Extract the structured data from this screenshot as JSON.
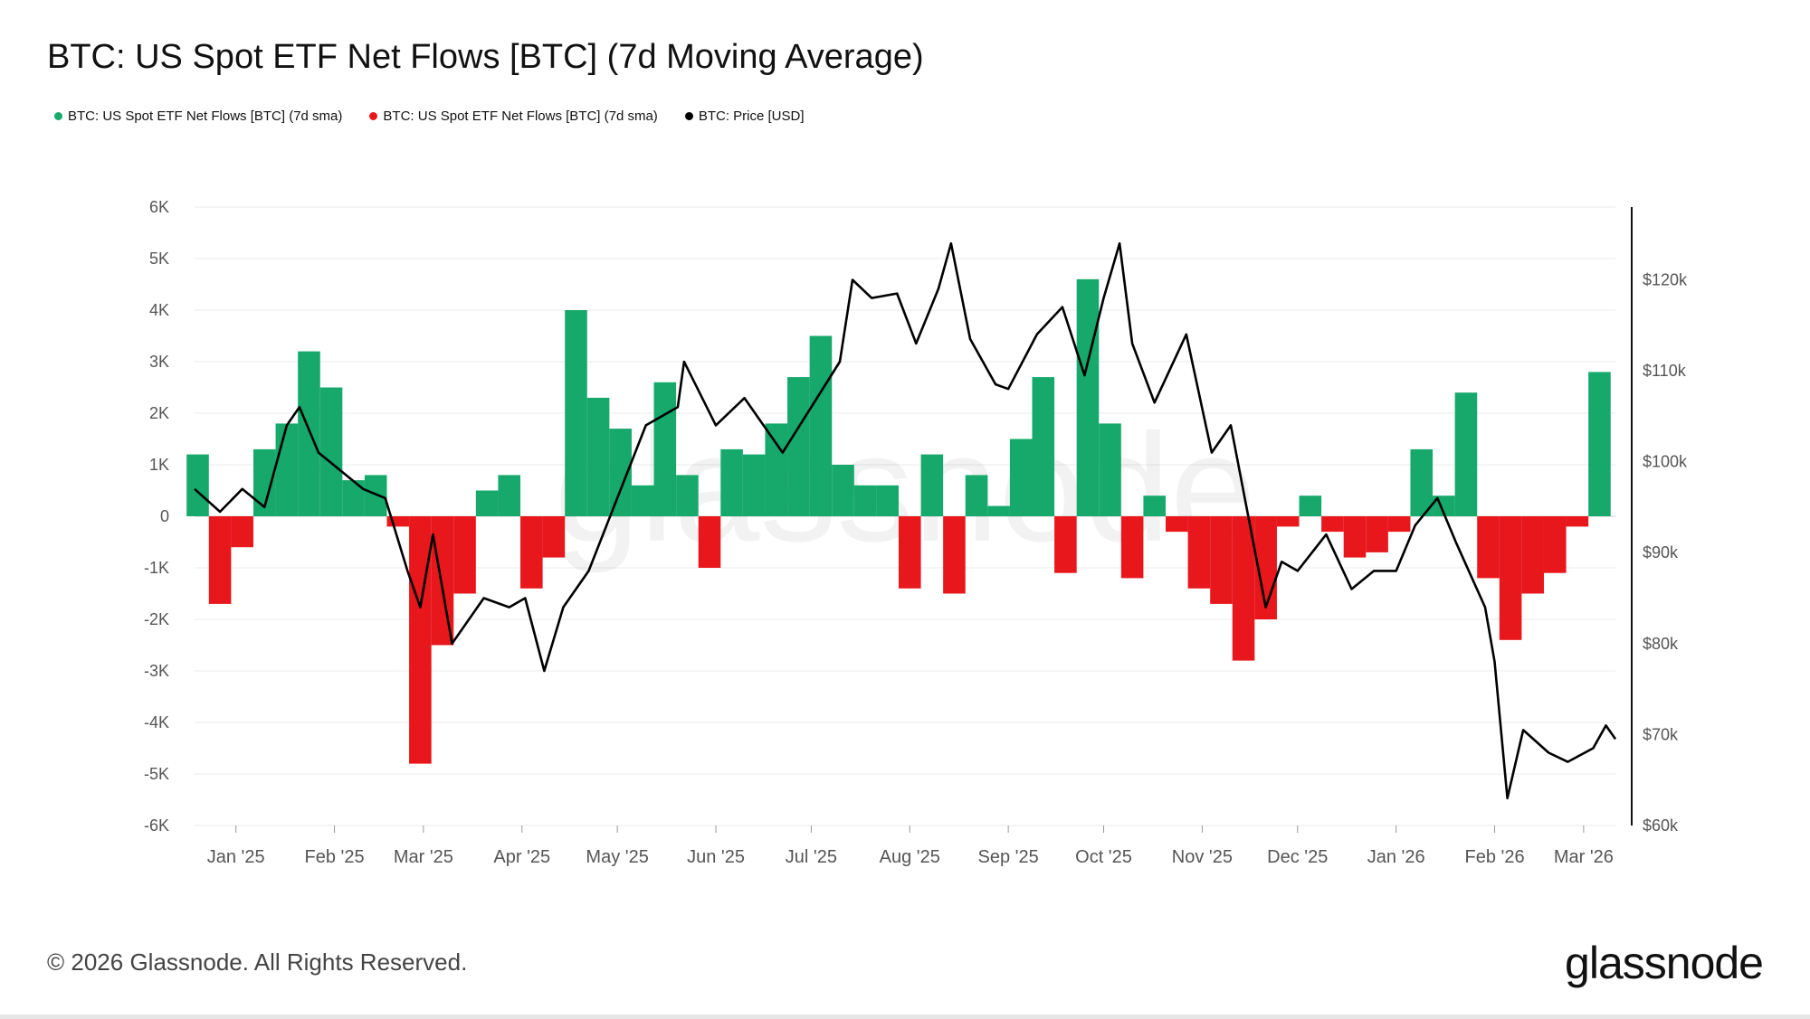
{
  "title": "BTC: US Spot ETF Net Flows [BTC] (7d Moving Average)",
  "legend": [
    {
      "label": "BTC: US Spot ETF Net Flows [BTC] (7d sma)",
      "color": "#16a96b"
    },
    {
      "label": "BTC: US Spot ETF Net Flows [BTC] (7d sma)",
      "color": "#e8171c"
    },
    {
      "label": "BTC: Price [USD]",
      "color": "#000000"
    }
  ],
  "watermark": "glassnode",
  "footer": "© 2026 Glassnode. All Rights Reserved.",
  "brand": "glassnode",
  "colors": {
    "positive": "#16a96b",
    "negative": "#e8171c",
    "price": "#000000",
    "grid": "#ebebeb"
  },
  "chart_data": {
    "type": "bar",
    "x_tick_labels": [
      "Jan '25",
      "Feb '25",
      "Mar '25",
      "Apr '25",
      "May '25",
      "Jun '25",
      "Jul '25",
      "Aug '25",
      "Sep '25",
      "Oct '25",
      "Nov '25",
      "Dec '25",
      "Jan '26",
      "Feb '26",
      "Mar '26"
    ],
    "x_ticks": [
      "2025-01-01",
      "2025-02-01",
      "2025-03-01",
      "2025-04-01",
      "2025-05-01",
      "2025-06-01",
      "2025-07-01",
      "2025-08-01",
      "2025-09-01",
      "2025-10-01",
      "2025-11-01",
      "2025-12-01",
      "2026-01-01",
      "2026-02-01",
      "2026-03-01"
    ],
    "x_range": [
      "2024-12-19",
      "2026-03-11"
    ],
    "y_left": {
      "min": -6000,
      "max": 6000,
      "ticks": [
        -6000,
        -5000,
        -4000,
        -3000,
        -2000,
        -1000,
        0,
        1000,
        2000,
        3000,
        4000,
        5000,
        6000
      ],
      "tick_labels": [
        "-6K",
        "-5K",
        "-4K",
        "-3K",
        "-2K",
        "-1K",
        "0",
        "1K",
        "2K",
        "3K",
        "4K",
        "5K",
        "6K"
      ]
    },
    "y_right": {
      "min": 60000,
      "max": 128000,
      "ticks": [
        60000,
        70000,
        80000,
        90000,
        100000,
        110000,
        120000
      ],
      "tick_labels": [
        "$60k",
        "$70k",
        "$80k",
        "$90k",
        "$100k",
        "$110k",
        "$120k"
      ]
    },
    "grid": true,
    "legend_position": "top-left",
    "flows": {
      "dates": [
        "2024-12-20",
        "2024-12-27",
        "2025-01-03",
        "2025-01-10",
        "2025-01-17",
        "2025-01-24",
        "2025-01-31",
        "2025-02-07",
        "2025-02-14",
        "2025-02-21",
        "2025-02-28",
        "2025-03-07",
        "2025-03-14",
        "2025-03-21",
        "2025-03-28",
        "2025-04-04",
        "2025-04-11",
        "2025-04-18",
        "2025-04-25",
        "2025-05-02",
        "2025-05-09",
        "2025-05-16",
        "2025-05-23",
        "2025-05-30",
        "2025-06-06",
        "2025-06-13",
        "2025-06-20",
        "2025-06-27",
        "2025-07-04",
        "2025-07-11",
        "2025-07-18",
        "2025-07-25",
        "2025-08-01",
        "2025-08-08",
        "2025-08-15",
        "2025-08-22",
        "2025-08-29",
        "2025-09-05",
        "2025-09-12",
        "2025-09-19",
        "2025-09-26",
        "2025-10-03",
        "2025-10-10",
        "2025-10-17",
        "2025-10-24",
        "2025-10-31",
        "2025-11-07",
        "2025-11-14",
        "2025-11-21",
        "2025-11-28",
        "2025-12-05",
        "2025-12-12",
        "2025-12-19",
        "2025-12-26",
        "2026-01-02",
        "2026-01-09",
        "2026-01-16",
        "2026-01-23",
        "2026-01-30",
        "2026-02-06",
        "2026-02-13",
        "2026-02-20",
        "2026-02-27",
        "2026-03-06"
      ],
      "values": [
        1200,
        -1700,
        -600,
        1300,
        1800,
        3200,
        2500,
        700,
        800,
        -200,
        -4800,
        -2500,
        -1500,
        500,
        800,
        -1400,
        -800,
        4000,
        2300,
        1700,
        600,
        2600,
        800,
        -1000,
        1300,
        1200,
        1800,
        2700,
        3500,
        1000,
        600,
        600,
        -1400,
        1200,
        -1500,
        800,
        200,
        1500,
        2700,
        -1100,
        4600,
        1800,
        -1200,
        400,
        -300,
        -1400,
        -1700,
        -2800,
        -2000,
        -200,
        400,
        -300,
        -800,
        -700,
        -300,
        1300,
        400,
        2400,
        -1200,
        -2400,
        -1500,
        -1100,
        -200,
        2800
      ]
    },
    "price": {
      "dates": [
        "2024-12-19",
        "2024-12-27",
        "2025-01-03",
        "2025-01-10",
        "2025-01-17",
        "2025-01-21",
        "2025-01-27",
        "2025-02-03",
        "2025-02-10",
        "2025-02-17",
        "2025-02-24",
        "2025-02-28",
        "2025-03-04",
        "2025-03-10",
        "2025-03-20",
        "2025-03-28",
        "2025-04-02",
        "2025-04-08",
        "2025-04-14",
        "2025-04-22",
        "2025-05-01",
        "2025-05-10",
        "2025-05-20",
        "2025-05-22",
        "2025-06-01",
        "2025-06-10",
        "2025-06-22",
        "2025-07-01",
        "2025-07-10",
        "2025-07-14",
        "2025-07-20",
        "2025-07-28",
        "2025-08-03",
        "2025-08-10",
        "2025-08-14",
        "2025-08-20",
        "2025-08-28",
        "2025-09-01",
        "2025-09-10",
        "2025-09-18",
        "2025-09-25",
        "2025-10-01",
        "2025-10-06",
        "2025-10-10",
        "2025-10-17",
        "2025-10-27",
        "2025-11-04",
        "2025-11-10",
        "2025-11-21",
        "2025-11-26",
        "2025-12-01",
        "2025-12-10",
        "2025-12-18",
        "2025-12-25",
        "2026-01-01",
        "2026-01-07",
        "2026-01-14",
        "2026-01-20",
        "2026-01-29",
        "2026-02-01",
        "2026-02-05",
        "2026-02-10",
        "2026-02-18",
        "2026-02-24",
        "2026-03-04",
        "2026-03-08",
        "2026-03-11"
      ],
      "values": [
        97000,
        94500,
        97000,
        95000,
        104000,
        106000,
        101000,
        99000,
        97000,
        96000,
        88000,
        84000,
        92000,
        80000,
        85000,
        84000,
        85000,
        77000,
        84000,
        88000,
        96000,
        104000,
        106000,
        111000,
        104000,
        107000,
        101000,
        106000,
        111000,
        120000,
        118000,
        118500,
        113000,
        119000,
        124000,
        113500,
        108500,
        108000,
        114000,
        117000,
        109500,
        118000,
        124000,
        113000,
        106500,
        114000,
        101000,
        104000,
        84000,
        89000,
        88000,
        92000,
        86000,
        88000,
        88000,
        93000,
        96000,
        91000,
        84000,
        78000,
        63000,
        70500,
        68000,
        67000,
        68500,
        71000,
        69500
      ]
    }
  }
}
